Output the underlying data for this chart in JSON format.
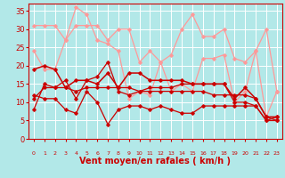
{
  "background_color": "#b2e8e8",
  "grid_color": "#ffffff",
  "xlabel": "Vent moyen/en rafales ( km/h )",
  "xlabel_color": "#cc0000",
  "xlabel_fontsize": 7,
  "tick_color": "#cc0000",
  "yticks": [
    0,
    5,
    10,
    15,
    20,
    25,
    30,
    35
  ],
  "xticks": [
    0,
    1,
    2,
    3,
    4,
    5,
    6,
    7,
    8,
    9,
    10,
    11,
    12,
    13,
    14,
    15,
    16,
    17,
    18,
    19,
    20,
    21,
    22,
    23
  ],
  "wind_arrows": [
    "↖",
    "↑",
    "↑",
    "↙",
    "↗",
    "↗",
    "↑",
    "↑",
    "←",
    "←",
    "↓",
    "↙",
    "↓",
    "↓",
    "↓",
    "↕",
    "↙",
    "↓",
    "↓",
    "↘",
    "↘",
    "↘",
    "↘",
    "↘"
  ],
  "lines": [
    {
      "x": [
        0,
        1,
        2,
        3,
        4,
        5,
        6,
        7,
        8,
        9,
        10,
        11,
        12,
        13,
        14,
        15,
        16,
        17,
        18,
        19,
        20,
        21,
        22,
        23
      ],
      "y": [
        31,
        31,
        31,
        27,
        31,
        31,
        31,
        27,
        30,
        30,
        21,
        24,
        21,
        23,
        30,
        34,
        28,
        28,
        30,
        22,
        21,
        24,
        30,
        13
      ],
      "color": "#ff9999",
      "lw": 0.9
    },
    {
      "x": [
        0,
        1,
        2,
        3,
        4,
        5,
        6,
        7,
        8,
        9,
        10,
        11,
        12,
        13,
        14,
        15,
        16,
        17,
        18,
        19,
        20,
        21,
        22,
        23
      ],
      "y": [
        24,
        19,
        19,
        27,
        36,
        34,
        27,
        26,
        24,
        11,
        13,
        12,
        21,
        13,
        15,
        13,
        22,
        22,
        23,
        10,
        13,
        24,
        6,
        13
      ],
      "color": "#ff9999",
      "lw": 0.9
    },
    {
      "x": [
        0,
        1,
        2,
        3,
        4,
        5,
        6,
        7,
        8,
        9,
        10,
        11,
        12,
        13,
        14,
        15,
        16,
        17,
        18,
        19,
        20,
        21,
        22,
        23
      ],
      "y": [
        12,
        11,
        11,
        8,
        7,
        13,
        10,
        4,
        8,
        9,
        9,
        8,
        9,
        8,
        7,
        7,
        9,
        9,
        9,
        9,
        9,
        9,
        5,
        5
      ],
      "color": "#cc0000",
      "lw": 0.9
    },
    {
      "x": [
        0,
        1,
        2,
        3,
        4,
        5,
        6,
        7,
        8,
        9,
        10,
        11,
        12,
        13,
        14,
        15,
        16,
        17,
        18,
        19,
        20,
        21,
        22,
        23
      ],
      "y": [
        8,
        15,
        14,
        16,
        11,
        16,
        17,
        21,
        13,
        12,
        13,
        14,
        14,
        14,
        15,
        15,
        15,
        15,
        15,
        10,
        10,
        9,
        5,
        6
      ],
      "color": "#cc0000",
      "lw": 0.9
    },
    {
      "x": [
        0,
        1,
        2,
        3,
        4,
        5,
        6,
        7,
        8,
        9,
        10,
        11,
        12,
        13,
        14,
        15,
        16,
        17,
        18,
        19,
        20,
        21,
        22,
        23
      ],
      "y": [
        19,
        20,
        19,
        14,
        16,
        16,
        15,
        18,
        14,
        18,
        18,
        16,
        16,
        16,
        16,
        15,
        15,
        15,
        15,
        11,
        14,
        11,
        6,
        6
      ],
      "color": "#cc0000",
      "lw": 1.1
    },
    {
      "x": [
        0,
        1,
        2,
        3,
        4,
        5,
        6,
        7,
        8,
        9,
        10,
        11,
        12,
        13,
        14,
        15,
        16,
        17,
        18,
        19,
        20,
        21,
        22,
        23
      ],
      "y": [
        11,
        14,
        14,
        14,
        13,
        14,
        14,
        14,
        14,
        14,
        13,
        13,
        13,
        13,
        13,
        13,
        13,
        12,
        12,
        12,
        12,
        11,
        6,
        5
      ],
      "color": "#cc0000",
      "lw": 0.9
    }
  ],
  "marker": "D",
  "markersize": 1.8,
  "ylim": [
    0,
    37
  ],
  "xlim": [
    -0.5,
    23.5
  ]
}
